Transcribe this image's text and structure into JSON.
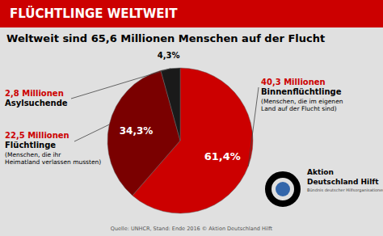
{
  "chart_data": {
    "type": "pie",
    "title": "FLÜCHTLINGE WELTWEIT",
    "subtitle": "Weltweit sind 65,6 Millionen Menschen auf der Flucht",
    "categories": [
      "Binnenflüchtlinge",
      "Flüchtlinge",
      "Asylsuchende"
    ],
    "values": [
      61.4,
      34.3,
      4.3
    ],
    "value_labels": [
      "61,4%",
      "34,3%",
      "4,3%"
    ],
    "data_labels": true,
    "colors": [
      "#cc0000",
      "#7a0000",
      "#1a1a1a"
    ],
    "annotations": [
      {
        "amount": "40,3 Millionen",
        "note": "(Menschen, die im eigenen\nLand auf der Flucht sind)"
      },
      {
        "amount": "22,5 Millionen",
        "note": "(Menschen, die ihr\nHeimatland verlassen mussten)"
      },
      {
        "amount": "2,8 Millionen"
      }
    ],
    "source": "Quelle: UNHCR, Stand: Ende 2016 © Aktion Deutschland Hilft",
    "footer_texts": [
      "Aktion",
      "Deutschland Hilft",
      "Bündnis deutscher Hilfsorganisationen"
    ]
  }
}
